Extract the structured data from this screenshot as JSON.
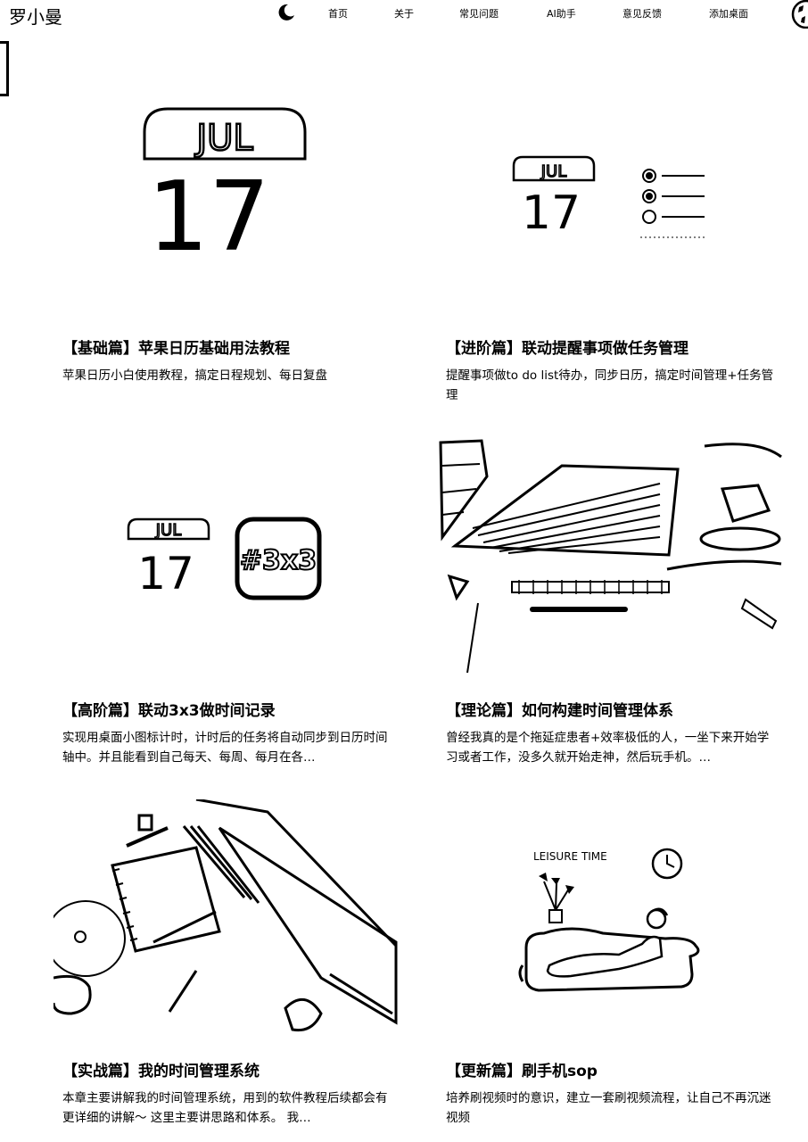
{
  "header": {
    "logo": "罗小曼",
    "nav": [
      "首页",
      "关于",
      "常见问题",
      "AI助手",
      "意见反馈",
      "添加桌面"
    ]
  },
  "cards": [
    {
      "title": "【基础篇】苹果日历基础用法教程",
      "desc": "苹果日历小白使用教程，搞定日程规划、每日复盘",
      "thumb": {
        "month": "JUL",
        "day": "17"
      }
    },
    {
      "title": "【进阶篇】联动提醒事项做任务管理",
      "desc": "提醒事项做to do list待办，同步日历，搞定时间管理+任务管理",
      "thumb": {
        "month": "JUL",
        "day": "17"
      }
    },
    {
      "title": "【高阶篇】联动3x3做时间记录",
      "desc": "实现用桌面小图标计时，计时后的任务将自动同步到日历时间轴中。并且能看到自己每天、每周、每月在各…",
      "thumb": {
        "month": "JUL",
        "day": "17",
        "badge": "#3x3"
      }
    },
    {
      "title": "【理论篇】如何构建时间管理体系",
      "desc": "曾经我真的是个拖延症患者+效率极低的人，一坐下来开始学习或者工作，没多久就开始走神，然后玩手机。…"
    },
    {
      "title": "【实战篇】我的时间管理系统",
      "desc": "本章主要讲解我的时间管理系统，用到的软件教程后续都会有更详细的讲解～ 这里主要讲思路和体系。 我…"
    },
    {
      "title": "【更新篇】刷手机sop",
      "desc": "培养刷视频时的意识，建立一套刷视频流程，让自己不再沉迷视频",
      "thumb": {
        "caption": "LEISURE TIME"
      }
    }
  ],
  "icons": [
    "moon-icon",
    "globe-icon"
  ]
}
